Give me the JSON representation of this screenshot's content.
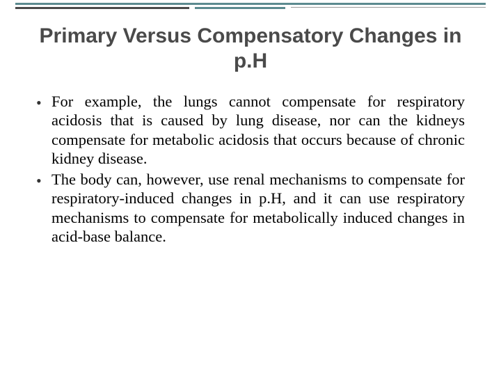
{
  "decor": {
    "teal": "#5b8a8f",
    "dark": "#4a4a4a",
    "light": "#999999"
  },
  "title": "Primary Versus Compensatory Changes in p.H",
  "bullets": [
    {
      "marker": "•",
      "text": "For example, the lungs cannot compensate for respiratory acidosis that is caused by lung disease, nor can the kidneys compensate for metabolic acidosis that occurs because of chronic kidney disease."
    },
    {
      "marker": "•",
      "text": "The body can, however, use renal mechanisms to compensate for respiratory-induced changes in p.H, and it can use respiratory mechanisms to compensate for metabolically induced changes in acid-base balance."
    }
  ]
}
